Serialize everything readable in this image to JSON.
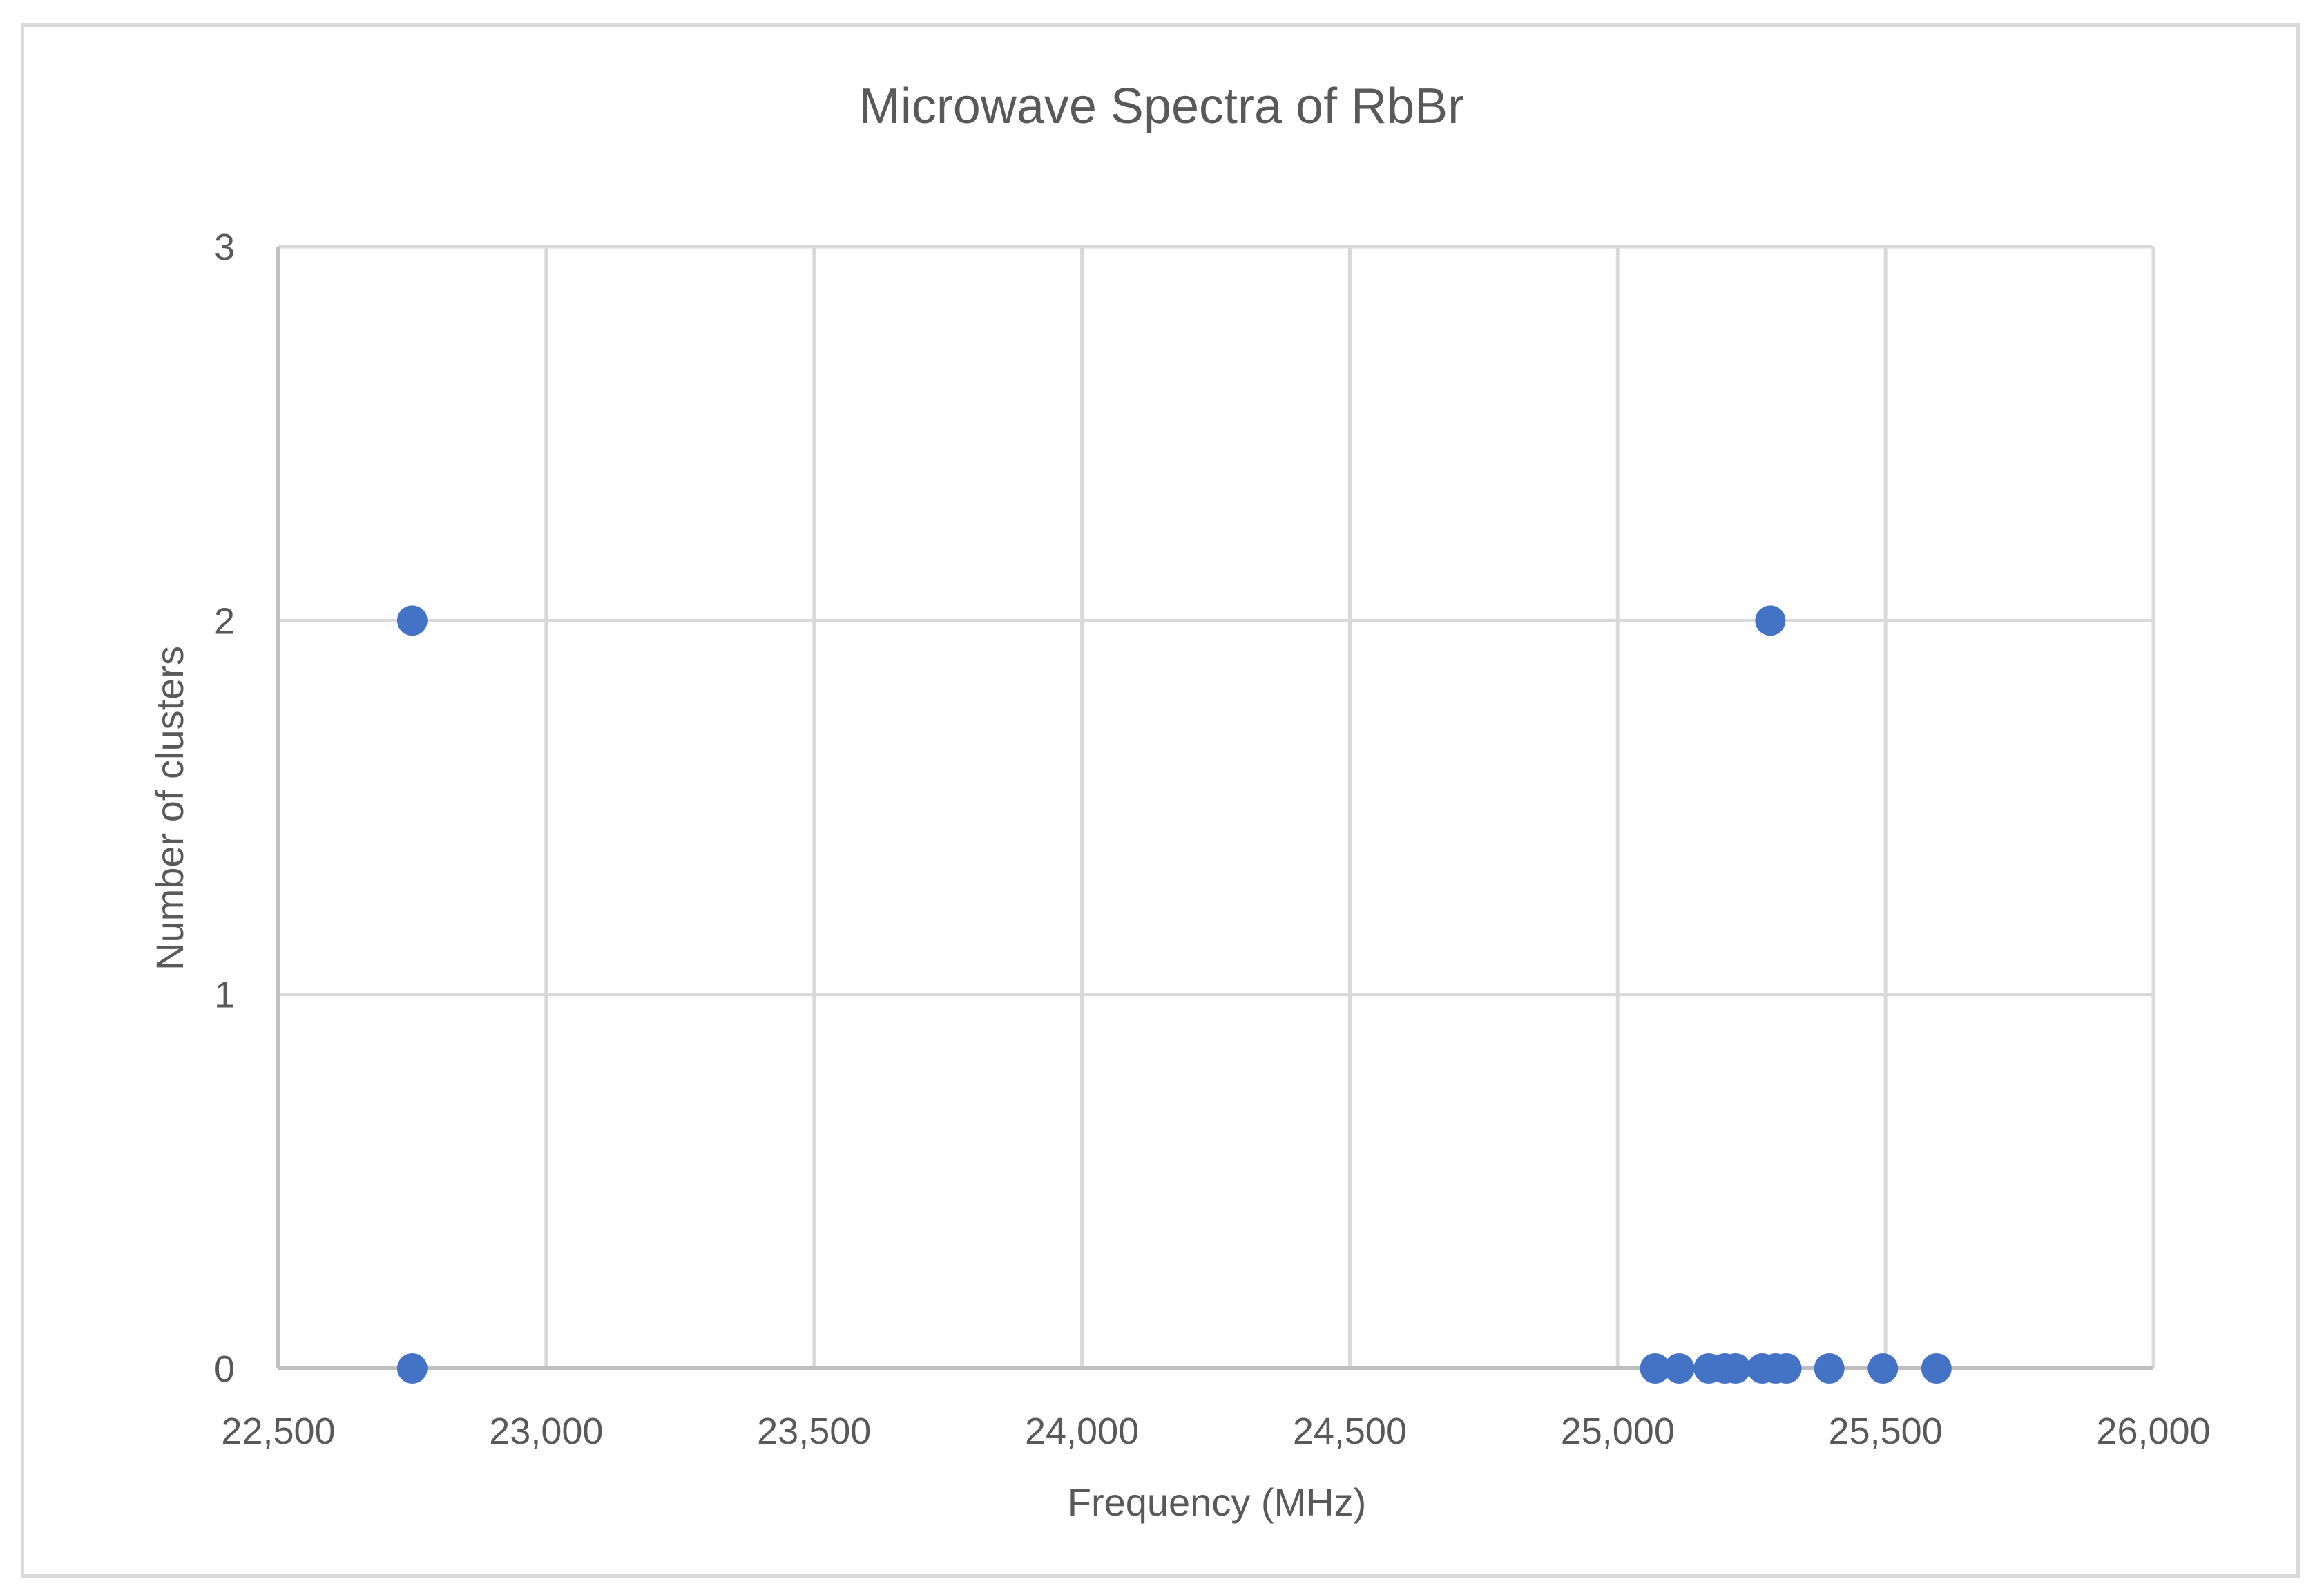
{
  "chart_data": {
    "type": "scatter",
    "title": "Microwave Spectra of RbBr",
    "xlabel": "Frequency (MHz)",
    "ylabel": "Number of clusters",
    "xlim": [
      22500,
      26000
    ],
    "ylim": [
      0,
      3
    ],
    "x_ticks": [
      22500,
      23000,
      23500,
      24000,
      24500,
      25000,
      25500,
      26000
    ],
    "x_tick_labels": [
      "22,500",
      "23,000",
      "23,500",
      "24,000",
      "24,500",
      "25,000",
      "25,500",
      "26,000"
    ],
    "y_ticks": [
      0,
      1,
      2,
      3
    ],
    "y_tick_labels": [
      "0",
      "1",
      "2",
      "3"
    ],
    "grid": true,
    "marker_color": "#4472c4",
    "series": [
      {
        "name": "RbBr",
        "points": [
          {
            "x": 22750,
            "y": 2
          },
          {
            "x": 22750,
            "y": 0
          },
          {
            "x": 25285,
            "y": 2
          },
          {
            "x": 25070,
            "y": 0
          },
          {
            "x": 25115,
            "y": 0
          },
          {
            "x": 25170,
            "y": 0
          },
          {
            "x": 25200,
            "y": 0
          },
          {
            "x": 25220,
            "y": 0
          },
          {
            "x": 25270,
            "y": 0
          },
          {
            "x": 25295,
            "y": 0
          },
          {
            "x": 25315,
            "y": 0
          },
          {
            "x": 25395,
            "y": 0
          },
          {
            "x": 25495,
            "y": 0
          },
          {
            "x": 25595,
            "y": 0
          }
        ]
      }
    ]
  }
}
